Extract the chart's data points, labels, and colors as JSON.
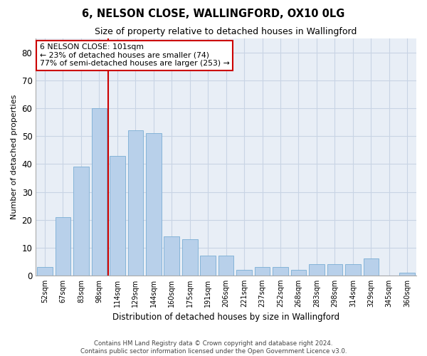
{
  "title1": "6, NELSON CLOSE, WALLINGFORD, OX10 0LG",
  "title2": "Size of property relative to detached houses in Wallingford",
  "xlabel": "Distribution of detached houses by size in Wallingford",
  "ylabel": "Number of detached properties",
  "categories": [
    "52sqm",
    "67sqm",
    "83sqm",
    "98sqm",
    "114sqm",
    "129sqm",
    "144sqm",
    "160sqm",
    "175sqm",
    "191sqm",
    "206sqm",
    "221sqm",
    "237sqm",
    "252sqm",
    "268sqm",
    "283sqm",
    "298sqm",
    "314sqm",
    "329sqm",
    "345sqm",
    "360sqm"
  ],
  "values": [
    3,
    21,
    39,
    60,
    43,
    52,
    51,
    14,
    13,
    7,
    7,
    2,
    3,
    3,
    2,
    4,
    4,
    4,
    6,
    0,
    1
  ],
  "bar_color": "#b8d0ea",
  "bar_edge_color": "#7aadd4",
  "grid_color": "#c8d4e4",
  "background_color": "#e8eef6",
  "vline_x_index": 3,
  "vline_color": "#cc0000",
  "annotation_line1": "6 NELSON CLOSE: 101sqm",
  "annotation_line2": "← 23% of detached houses are smaller (74)",
  "annotation_line3": "77% of semi-detached houses are larger (253) →",
  "annotation_box_color": "#ffffff",
  "annotation_box_edgecolor": "#cc0000",
  "ylim": [
    0,
    85
  ],
  "yticks": [
    0,
    10,
    20,
    30,
    40,
    50,
    60,
    70,
    80
  ],
  "footer1": "Contains HM Land Registry data © Crown copyright and database right 2024.",
  "footer2": "Contains public sector information licensed under the Open Government Licence v3.0."
}
